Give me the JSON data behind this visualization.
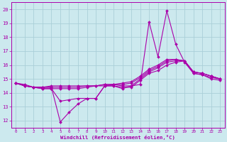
{
  "xlabel": "Windchill (Refroidissement éolien,°C)",
  "xlim": [
    -0.5,
    23.5
  ],
  "ylim": [
    11.5,
    20.5
  ],
  "yticks": [
    12,
    13,
    14,
    15,
    16,
    17,
    18,
    19,
    20
  ],
  "xticks": [
    0,
    1,
    2,
    3,
    4,
    5,
    6,
    7,
    8,
    9,
    10,
    11,
    12,
    13,
    14,
    15,
    16,
    17,
    18,
    19,
    20,
    21,
    22,
    23
  ],
  "background_color": "#cce9ee",
  "grid_color": "#aacfd8",
  "line_color": "#aa00aa",
  "lines": [
    [
      14.7,
      14.6,
      14.4,
      14.4,
      14.4,
      11.9,
      12.6,
      13.2,
      13.6,
      13.6,
      14.5,
      14.5,
      14.3,
      14.5,
      14.6,
      19.1,
      16.6,
      19.9,
      17.5,
      16.2,
      15.4,
      15.3,
      15.0,
      14.9
    ],
    [
      14.7,
      14.5,
      14.4,
      14.3,
      14.3,
      13.4,
      13.5,
      13.6,
      13.6,
      13.6,
      14.5,
      14.5,
      14.4,
      14.4,
      14.9,
      15.4,
      15.6,
      16.0,
      16.2,
      16.3,
      15.4,
      15.3,
      15.1,
      15.0
    ],
    [
      14.7,
      14.5,
      14.4,
      14.3,
      14.3,
      14.3,
      14.3,
      14.3,
      14.4,
      14.5,
      14.5,
      14.6,
      14.5,
      14.5,
      15.0,
      15.5,
      15.8,
      16.2,
      16.3,
      16.3,
      15.5,
      15.4,
      15.2,
      15.0
    ],
    [
      14.7,
      14.5,
      14.4,
      14.4,
      14.4,
      14.4,
      14.4,
      14.4,
      14.5,
      14.5,
      14.6,
      14.6,
      14.6,
      14.7,
      15.1,
      15.6,
      15.9,
      16.3,
      16.4,
      16.3,
      15.5,
      15.4,
      15.2,
      15.0
    ],
    [
      14.7,
      14.5,
      14.4,
      14.4,
      14.5,
      14.5,
      14.5,
      14.5,
      14.5,
      14.5,
      14.6,
      14.6,
      14.7,
      14.8,
      15.2,
      15.7,
      16.0,
      16.4,
      16.4,
      16.3,
      15.5,
      15.4,
      15.2,
      15.0
    ]
  ]
}
